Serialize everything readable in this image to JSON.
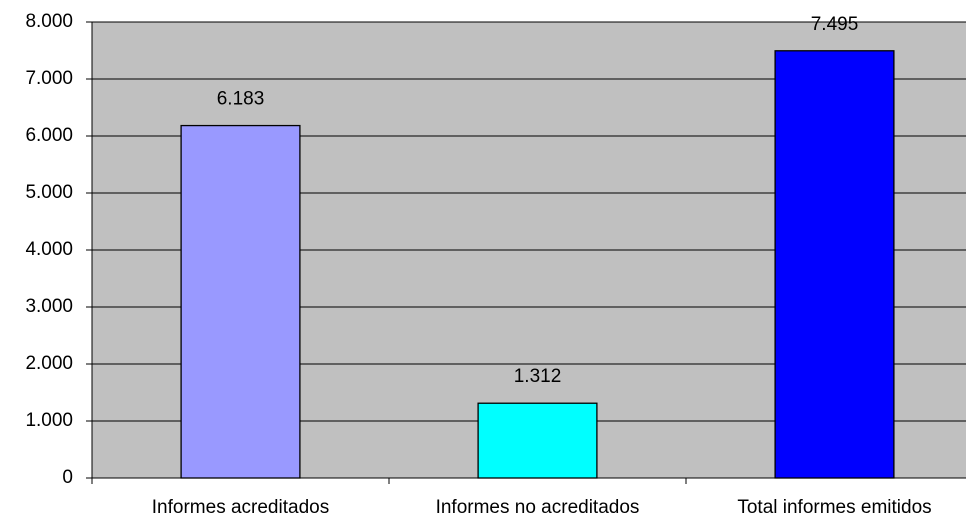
{
  "chart_data": {
    "type": "bar",
    "categories": [
      "Informes acreditados",
      "Informes no acreditados",
      "Total informes emitidos"
    ],
    "values": [
      6183,
      1312,
      7495
    ],
    "value_labels": [
      "6.183",
      "1.312",
      "7.495"
    ],
    "colors": [
      "#9999ff",
      "#00ffff",
      "#0000ff"
    ],
    "ylim": [
      0,
      8000
    ],
    "yticks": [
      0,
      {
        "value": 1000,
        "label": "1.000"
      },
      {
        "value": 2000,
        "label": "2.000"
      },
      {
        "value": 3000,
        "label": "3.000"
      },
      {
        "value": 4000,
        "label": "4.000"
      },
      {
        "value": 5000,
        "label": "5.000"
      },
      {
        "value": 6000,
        "label": "6.000"
      },
      {
        "value": 7000,
        "label": "7.000"
      },
      {
        "value": 8000,
        "label": "8.000"
      }
    ],
    "grid": true
  }
}
